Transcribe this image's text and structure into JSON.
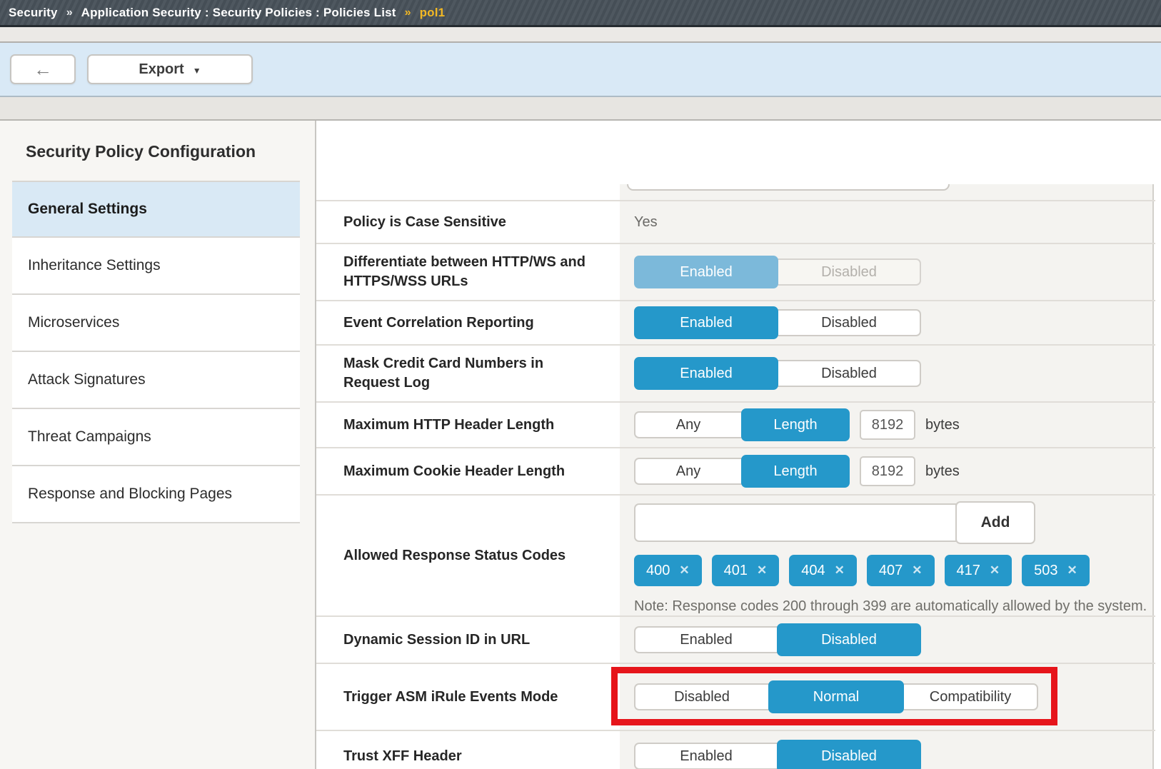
{
  "colors": {
    "accent": "#2598ca",
    "accent-muted": "#7cb9da",
    "highlight-red": "#e6151b",
    "crumb-yellow": "#f2b824"
  },
  "icons": {
    "back_arrow": "←",
    "caret": "▼",
    "remove": "✕"
  },
  "breadcrumb": {
    "section": "Security",
    "separator": "»",
    "path": "Application Security : Security Policies : Policies List",
    "current": "pol1"
  },
  "toolbar": {
    "export_label": "Export"
  },
  "sidebar": {
    "title": "Security Policy Configuration",
    "items": [
      {
        "label": "General Settings",
        "selected": true
      },
      {
        "label": "Inheritance Settings",
        "selected": false
      },
      {
        "label": "Microservices",
        "selected": false
      },
      {
        "label": "Attack Signatures",
        "selected": false
      },
      {
        "label": "Threat Campaigns",
        "selected": false
      },
      {
        "label": "Response and Blocking Pages",
        "selected": false
      }
    ]
  },
  "settings": {
    "rows": [
      {
        "type": "clipped-input",
        "value": ""
      },
      {
        "type": "static",
        "label": "Policy is Case Sensitive",
        "value": "Yes"
      },
      {
        "type": "toggle",
        "label": "Differentiate between HTTP/WS and HTTPS/WSS URLs",
        "options": [
          "Enabled",
          "Disabled"
        ],
        "selected": "Enabled",
        "readonly": true
      },
      {
        "type": "toggle",
        "label": "Event Correlation Reporting",
        "options": [
          "Enabled",
          "Disabled"
        ],
        "selected": "Enabled"
      },
      {
        "type": "toggle",
        "label": "Mask Credit Card Numbers in Request Log",
        "options": [
          "Enabled",
          "Disabled"
        ],
        "selected": "Enabled"
      },
      {
        "type": "toggle-length",
        "label": "Maximum HTTP Header Length",
        "options": [
          "Any",
          "Length"
        ],
        "selected": "Length",
        "value": "8192",
        "unit": "bytes"
      },
      {
        "type": "toggle-length",
        "label": "Maximum Cookie Header Length",
        "options": [
          "Any",
          "Length"
        ],
        "selected": "Length",
        "value": "8192",
        "unit": "bytes"
      },
      {
        "type": "codes",
        "label": "Allowed Response Status Codes",
        "input_value": "",
        "add_label": "Add",
        "codes": [
          "400",
          "401",
          "404",
          "407",
          "417",
          "503"
        ],
        "note": "Note: Response codes 200 through 399 are automatically allowed by the system."
      },
      {
        "type": "toggle",
        "label": "Dynamic Session ID in URL",
        "options": [
          "Enabled",
          "Disabled"
        ],
        "selected": "Disabled"
      },
      {
        "type": "toggle",
        "label": "Trigger ASM iRule Events Mode",
        "options": [
          "Disabled",
          "Normal",
          "Compatibility"
        ],
        "selected": "Normal",
        "highlighted": true
      },
      {
        "type": "toggle",
        "label": "Trust XFF Header",
        "options": [
          "Enabled",
          "Disabled"
        ],
        "selected": "Disabled"
      }
    ]
  }
}
